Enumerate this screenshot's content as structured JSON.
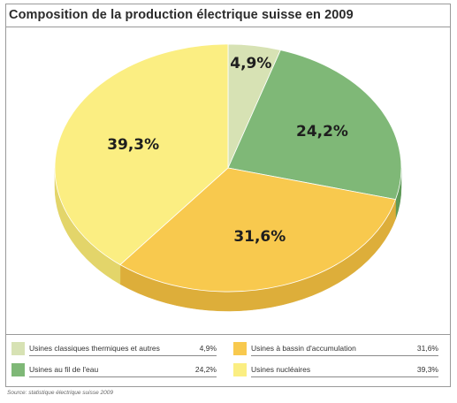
{
  "chart_data": {
    "type": "pie",
    "title": "Composition de la production électrique suisse en 2009",
    "slices": [
      {
        "label": "Usines classiques thermiques et autres",
        "value": 4.9,
        "display": "4,9%",
        "legend_value": "4,9%",
        "color": "#d7e2b4",
        "side": "#bcc996"
      },
      {
        "label": "Usines au fil de l'eau",
        "value": 24.2,
        "display": "24,2%",
        "legend_value": "24,2%",
        "color": "#7fb877",
        "side": "#5f9a58"
      },
      {
        "label": "Usines à bassin d'accumulation",
        "value": 31.6,
        "display": "31,6%",
        "legend_value": "31,6%",
        "color": "#f8c94e",
        "side": "#ddae3a"
      },
      {
        "label": "Usines nucléaires",
        "value": 39.3,
        "display": "39,3%",
        "legend_value": "39,3%",
        "color": "#fbee82",
        "side": "#e3d56a"
      }
    ],
    "legend_placement": "bottom"
  },
  "source": "Source: statistique électrique suisse 2009"
}
